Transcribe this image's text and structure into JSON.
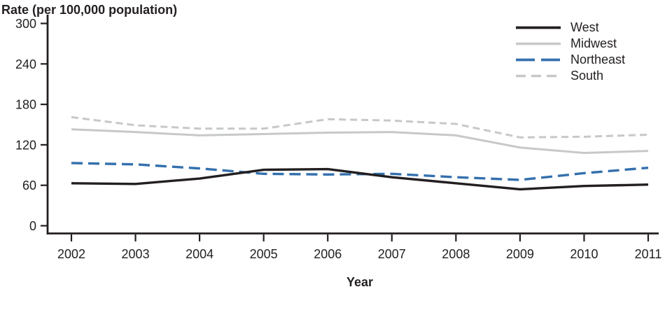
{
  "colors": {
    "axis_and_text": "#231f20",
    "west_line": "#231f20",
    "midwest_line": "#c7c8ca",
    "northeast_line": "#3470ad",
    "south_line": "#c7c8ca"
  },
  "chart_data": {
    "type": "line",
    "title": "",
    "ylabel": "Rate (per 100,000 population)",
    "xlabel": "Year",
    "x": [
      2002,
      2003,
      2004,
      2005,
      2006,
      2007,
      2008,
      2009,
      2010,
      2011
    ],
    "ylim": [
      0,
      300
    ],
    "yticks": [
      0,
      60,
      120,
      180,
      240,
      300
    ],
    "grid": false,
    "legend_position": "top-right",
    "series": [
      {
        "name": "West",
        "color": "#231f20",
        "style": "solid",
        "values": [
          63,
          62,
          70,
          83,
          84,
          72,
          63,
          54,
          59,
          61
        ]
      },
      {
        "name": "Midwest",
        "color": "#c7c8ca",
        "style": "solid",
        "values": [
          143,
          139,
          134,
          136,
          138,
          139,
          134,
          116,
          108,
          111
        ]
      },
      {
        "name": "Northeast",
        "color": "#3470ad",
        "style": "long-dash",
        "values": [
          93,
          91,
          85,
          77,
          76,
          77,
          72,
          68,
          78,
          86
        ]
      },
      {
        "name": "South",
        "color": "#c7c8ca",
        "style": "short-dash",
        "values": [
          161,
          149,
          144,
          144,
          158,
          156,
          151,
          131,
          132,
          135
        ]
      }
    ]
  }
}
